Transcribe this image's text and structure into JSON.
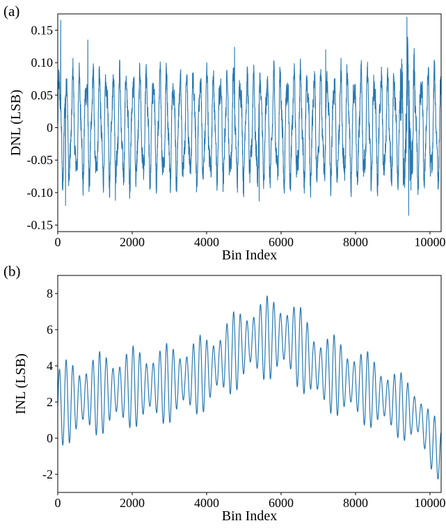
{
  "panels": [
    {
      "label": "(a)"
    },
    {
      "label": "(b)"
    }
  ],
  "colors": {
    "series": "#2878b0",
    "axis": "#000000"
  },
  "chart_data": [
    {
      "type": "line",
      "panel": "(a)",
      "title": "",
      "xlabel": "Bin Index",
      "ylabel": "DNL (LSB)",
      "xlim": [
        0,
        10300
      ],
      "ylim": [
        -0.16,
        0.175
      ],
      "xticks": [
        0,
        2000,
        4000,
        6000,
        8000,
        10000
      ],
      "yticks": [
        -0.15,
        -0.1,
        -0.05,
        0,
        0.05,
        0.1,
        0.15
      ],
      "ytick_labels": [
        "-0.15",
        "-0.10",
        "-0.05",
        "0",
        "0.05",
        "0.10",
        "0.15"
      ],
      "grid": false,
      "series": [
        {
          "description_of_shape": "dense oscillation, approx period 180 bins, amplitude about +/-0.075 LSB with spikes",
          "period": 180,
          "amplitude": 0.072,
          "noise": 0.018,
          "peaks": [
            {
              "x": 80,
              "y": 0.165
            },
            {
              "x": 210,
              "y": -0.12
            },
            {
              "x": 810,
              "y": 0.135
            },
            {
              "x": 9380,
              "y": 0.17
            },
            {
              "x": 9430,
              "y": -0.135
            },
            {
              "x": 1550,
              "y": -0.112
            },
            {
              "x": 5410,
              "y": -0.113
            },
            {
              "x": 4750,
              "y": 0.124
            },
            {
              "x": 7200,
              "y": 0.12
            }
          ]
        }
      ]
    },
    {
      "type": "line",
      "panel": "(b)",
      "title": "",
      "xlabel": "Bin Index",
      "ylabel": "INL (LSB)",
      "xlim": [
        0,
        10300
      ],
      "ylim": [
        -3,
        9
      ],
      "xticks": [
        0,
        2000,
        4000,
        6000,
        8000,
        10000
      ],
      "yticks": [
        -2,
        0,
        2,
        4,
        6,
        8
      ],
      "ytick_labels": [
        "-2",
        "0",
        "2",
        "4",
        "6",
        "8"
      ],
      "grid": false,
      "series": [
        {
          "envelope_center": [
            [
              0,
              1.8
            ],
            [
              300,
              2.0
            ],
            [
              1000,
              2.4
            ],
            [
              2000,
              2.8
            ],
            [
              3000,
              3.0
            ],
            [
              4000,
              3.6
            ],
            [
              4500,
              4.4
            ],
            [
              5200,
              5.4
            ],
            [
              6000,
              5.6
            ],
            [
              6300,
              5.4
            ],
            [
              7000,
              3.8
            ],
            [
              8000,
              3.0
            ],
            [
              9000,
              2.0
            ],
            [
              9700,
              1.2
            ],
            [
              10000,
              0.0
            ],
            [
              10300,
              -1.0
            ]
          ],
          "amplitude": [
            [
              0,
              2.4
            ],
            [
              2000,
              2.3
            ],
            [
              4000,
              2.2
            ],
            [
              6000,
              2.4
            ],
            [
              8000,
              2.2
            ],
            [
              10300,
              1.6
            ]
          ],
          "period": 180
        }
      ]
    }
  ]
}
